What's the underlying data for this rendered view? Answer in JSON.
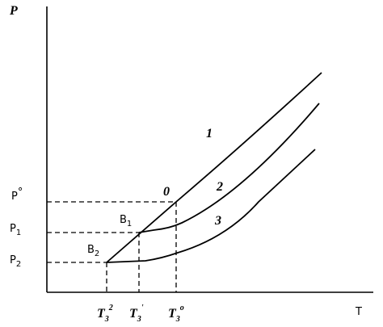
{
  "axes": {
    "y": "P",
    "x": "T"
  },
  "y_labels": [
    {
      "main": "P",
      "sup": "°"
    },
    {
      "main": "P",
      "sub": "1"
    },
    {
      "main": "P",
      "sub": "2"
    }
  ],
  "points": [
    {
      "main": "B",
      "sub": "1"
    },
    {
      "main": "B",
      "sub": "2"
    }
  ],
  "curve_labels": [
    "0",
    "1",
    "2",
    "3"
  ],
  "x_labels": [
    {
      "main": "T",
      "sub": "3",
      "sup": "2"
    },
    {
      "main": "T",
      "sub": "3",
      "sup": "'"
    },
    {
      "main": "T",
      "sub": "3",
      "sup": "o"
    }
  ]
}
